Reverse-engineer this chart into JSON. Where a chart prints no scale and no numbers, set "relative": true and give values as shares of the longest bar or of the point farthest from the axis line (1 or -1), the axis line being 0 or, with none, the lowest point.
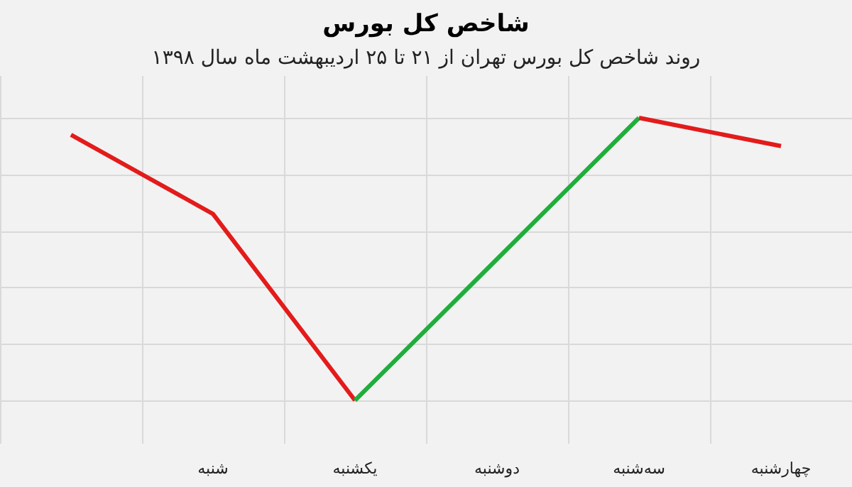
{
  "chart_data": {
    "type": "line",
    "title": "شاخص کل بورس",
    "subtitle": "روند شاخص کل بورس تهران از ۲۱ تا ۲۵ اردیبهشت ماه سال ۱۳۹۸",
    "categories": [
      null,
      "شنبه",
      "یکشنبه",
      "دوشنبه",
      "سه‌شنبه",
      "چهارشنبه"
    ],
    "relative": true,
    "grid": true,
    "line_style": "solid",
    "marker": "none",
    "series": [
      {
        "color": "#e31b1b",
        "values": [
          0.94,
          0.66,
          0,
          null,
          null,
          null
        ]
      },
      {
        "color": "#1fae3b",
        "values": [
          null,
          null,
          0,
          0.5,
          1,
          null
        ]
      },
      {
        "color": "#e31b1b",
        "values": [
          null,
          null,
          null,
          null,
          1,
          0.9
        ]
      }
    ]
  }
}
